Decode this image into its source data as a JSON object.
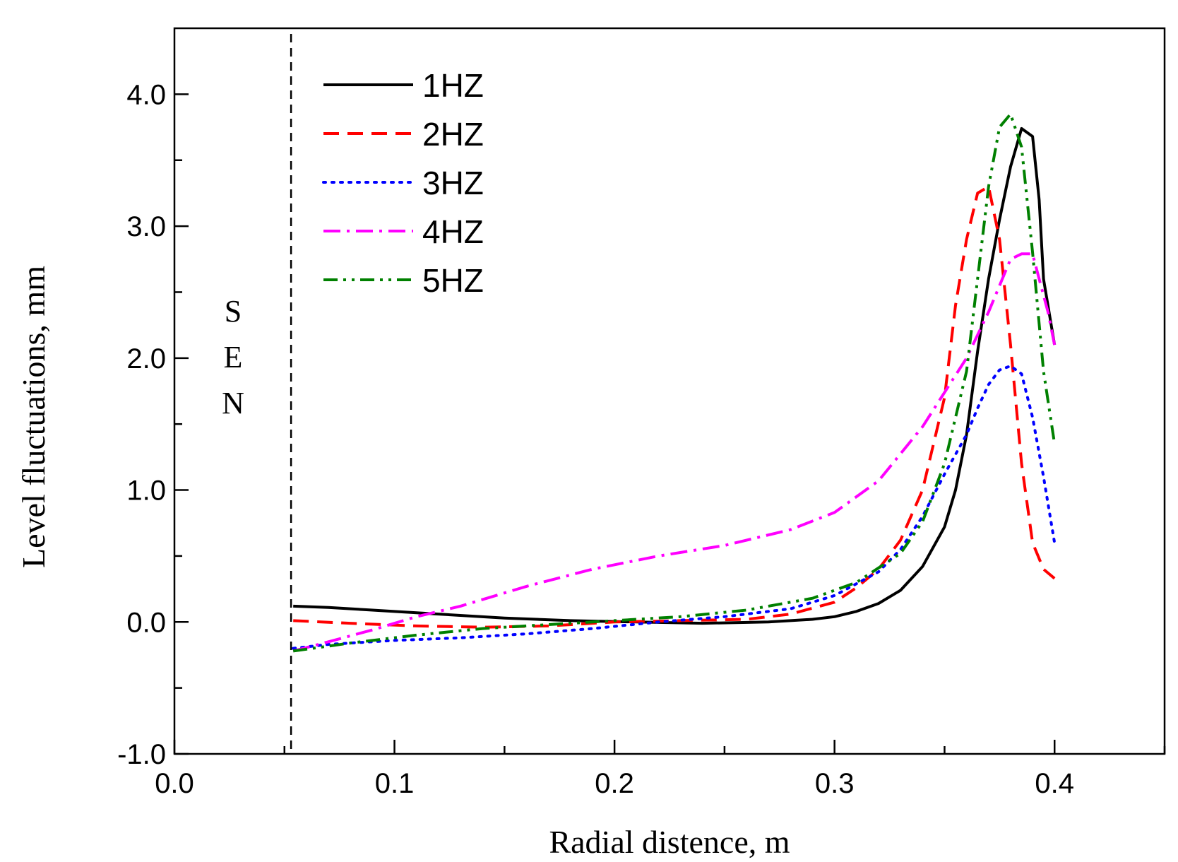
{
  "chart_data": {
    "type": "line",
    "xlabel": "Radial distence,  m",
    "ylabel": "Level fluctuations,  mm",
    "xlim": [
      0.0,
      0.45
    ],
    "ylim": [
      -1.0,
      4.5
    ],
    "x_ticks": [
      "0.0",
      "0.1",
      "0.2",
      "0.3",
      "0.4"
    ],
    "y_ticks": [
      "-1.0",
      "0.0",
      "1.0",
      "2.0",
      "3.0",
      "4.0"
    ],
    "grid": false,
    "legend_position": "top-left",
    "annotation": {
      "text": "SEN",
      "letters": [
        "S",
        "E",
        "N"
      ],
      "marker_x": 0.053
    },
    "series": [
      {
        "name": "1HZ",
        "color": "#000000",
        "style": "solid",
        "x": [
          0.054,
          0.07,
          0.09,
          0.12,
          0.15,
          0.18,
          0.21,
          0.24,
          0.27,
          0.29,
          0.3,
          0.31,
          0.32,
          0.33,
          0.34,
          0.35,
          0.355,
          0.36,
          0.365,
          0.37,
          0.375,
          0.38,
          0.385,
          0.39,
          0.393,
          0.395,
          0.4
        ],
        "y": [
          0.12,
          0.11,
          0.09,
          0.06,
          0.03,
          0.01,
          0.0,
          -0.01,
          0.0,
          0.02,
          0.04,
          0.08,
          0.14,
          0.24,
          0.42,
          0.72,
          1.0,
          1.42,
          2.05,
          2.6,
          3.05,
          3.45,
          3.74,
          3.68,
          3.2,
          2.6,
          2.1
        ]
      },
      {
        "name": "2HZ",
        "color": "#ff0000",
        "style": "dashed",
        "x": [
          0.054,
          0.08,
          0.11,
          0.14,
          0.17,
          0.2,
          0.23,
          0.26,
          0.28,
          0.3,
          0.31,
          0.32,
          0.33,
          0.34,
          0.35,
          0.355,
          0.36,
          0.365,
          0.37,
          0.375,
          0.38,
          0.385,
          0.39,
          0.395,
          0.4
        ],
        "y": [
          0.01,
          -0.01,
          -0.03,
          -0.04,
          -0.03,
          0.0,
          0.01,
          0.02,
          0.06,
          0.15,
          0.26,
          0.4,
          0.62,
          1.0,
          1.7,
          2.4,
          2.9,
          3.25,
          3.3,
          2.9,
          2.1,
          1.2,
          0.6,
          0.4,
          0.33
        ]
      },
      {
        "name": "3HZ",
        "color": "#0000ff",
        "style": "dotted",
        "x": [
          0.054,
          0.07,
          0.1,
          0.13,
          0.16,
          0.19,
          0.22,
          0.25,
          0.28,
          0.3,
          0.32,
          0.33,
          0.34,
          0.35,
          0.36,
          0.365,
          0.37,
          0.375,
          0.38,
          0.385,
          0.39,
          0.395,
          0.4
        ],
        "y": [
          -0.2,
          -0.17,
          -0.14,
          -0.12,
          -0.09,
          -0.05,
          0.0,
          0.04,
          0.1,
          0.2,
          0.38,
          0.55,
          0.8,
          1.12,
          1.42,
          1.62,
          1.8,
          1.91,
          1.94,
          1.88,
          1.55,
          1.1,
          0.6
        ]
      },
      {
        "name": "4HZ",
        "color": "#ff00ff",
        "style": "dashdot",
        "x": [
          0.054,
          0.07,
          0.09,
          0.11,
          0.13,
          0.16,
          0.19,
          0.22,
          0.25,
          0.28,
          0.3,
          0.32,
          0.34,
          0.36,
          0.37,
          0.38,
          0.385,
          0.39,
          0.393,
          0.397,
          0.4
        ],
        "y": [
          -0.22,
          -0.15,
          -0.06,
          0.04,
          0.12,
          0.27,
          0.4,
          0.5,
          0.58,
          0.7,
          0.83,
          1.07,
          1.48,
          2.0,
          2.35,
          2.75,
          2.79,
          2.79,
          2.6,
          2.35,
          2.1
        ]
      },
      {
        "name": "5HZ",
        "color": "#008000",
        "style": "dashdotdot",
        "x": [
          0.054,
          0.08,
          0.11,
          0.14,
          0.17,
          0.2,
          0.23,
          0.26,
          0.29,
          0.31,
          0.33,
          0.34,
          0.35,
          0.36,
          0.365,
          0.37,
          0.375,
          0.38,
          0.385,
          0.39,
          0.395,
          0.4
        ],
        "y": [
          -0.22,
          -0.16,
          -0.1,
          -0.05,
          -0.02,
          0.01,
          0.04,
          0.09,
          0.18,
          0.3,
          0.52,
          0.76,
          1.2,
          1.9,
          2.6,
          3.3,
          3.75,
          3.85,
          3.6,
          2.8,
          1.9,
          1.35
        ]
      }
    ]
  }
}
